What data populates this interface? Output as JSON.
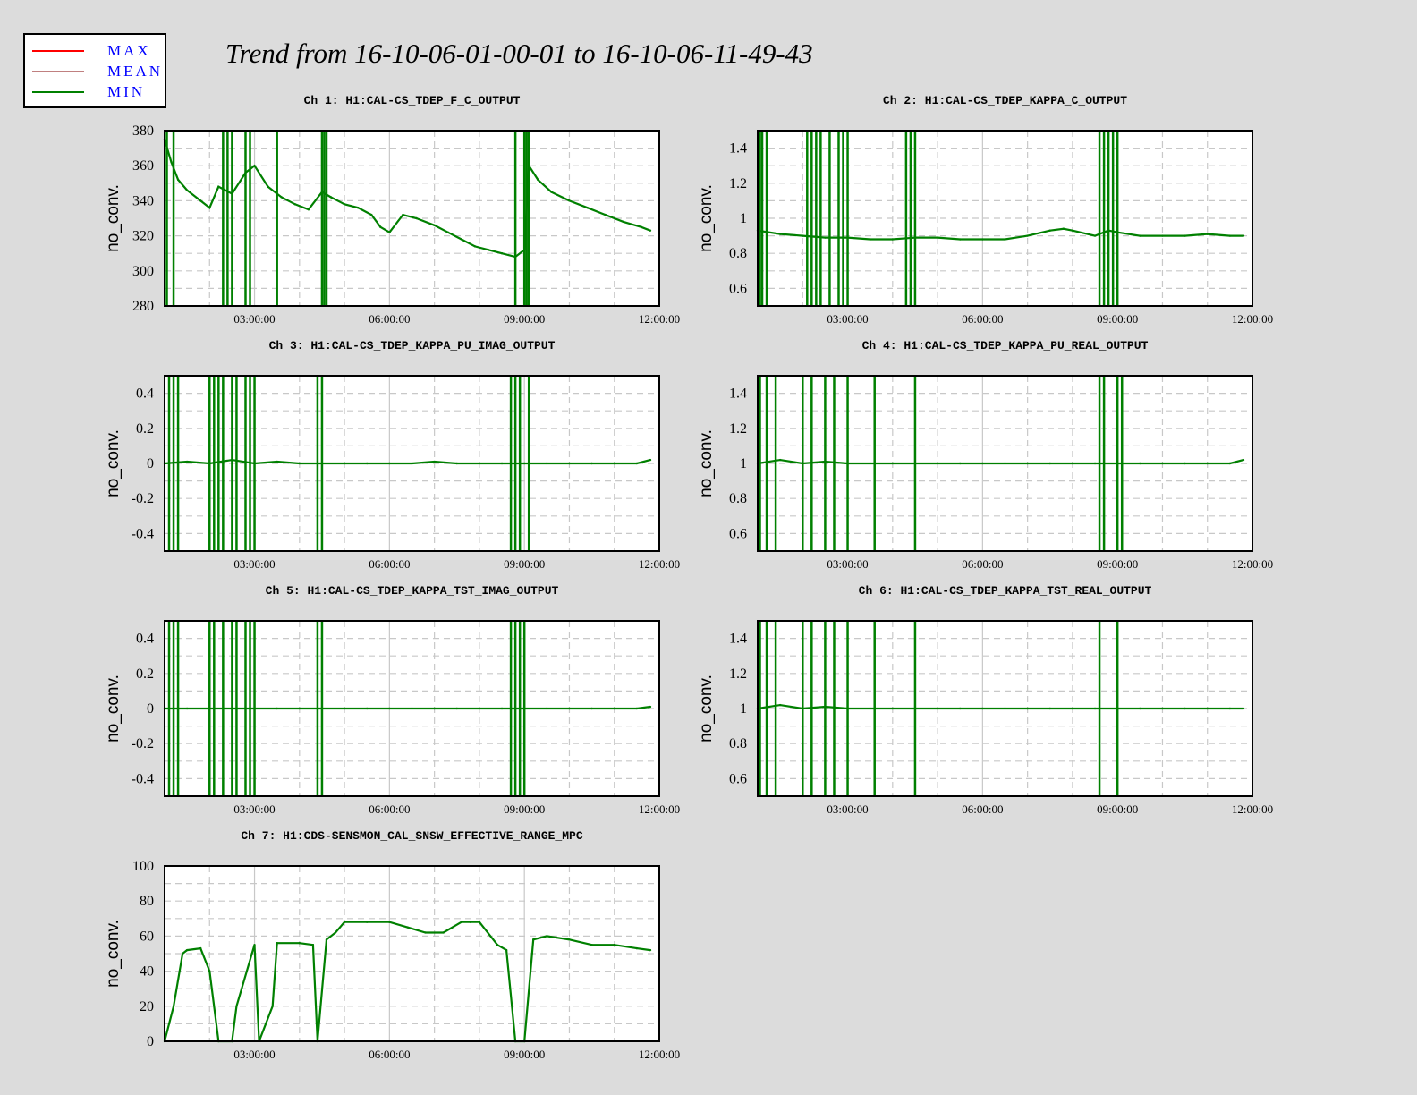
{
  "title": "Trend from 16-10-06-01-00-01 to 16-10-06-11-49-43",
  "legend": [
    {
      "label": "MAX",
      "color": "#ff0000"
    },
    {
      "label": "MEAN",
      "color": "#c08080"
    },
    {
      "label": "MIN",
      "color": "#008000"
    }
  ],
  "colors": {
    "trace": "#008000",
    "max": "#ff0000",
    "grid": "#c8c8c8",
    "background": "#dcdcdc",
    "plot_bg": "#ffffff",
    "legend_text": "#0000ff"
  },
  "chart_data": [
    {
      "type": "line",
      "title": "Ch 1: H1:CAL-CS_TDEP_F_C_OUTPUT",
      "ylabel": "no_conv.",
      "xlim": [
        1.0,
        12.0
      ],
      "ylim": [
        280,
        380
      ],
      "yticks": [
        "280",
        "300",
        "320",
        "340",
        "360",
        "380"
      ],
      "xticks": [
        "03:00:00",
        "06:00:00",
        "09:00:00",
        "12:00:00"
      ],
      "grid": true,
      "series": [
        {
          "x": [
            1.0,
            1.15,
            1.3,
            1.5,
            1.8,
            2.0,
            2.2,
            2.5,
            2.8,
            3.0,
            3.3,
            3.6,
            3.9,
            4.2,
            4.5,
            4.7,
            5.0,
            5.3,
            5.6,
            5.8,
            6.0,
            6.3,
            6.6,
            7.0,
            7.3,
            7.6,
            7.9,
            8.2,
            8.5,
            8.8,
            9.0,
            9.1,
            9.3,
            9.6,
            10.0,
            10.4,
            10.8,
            11.2,
            11.6,
            11.8
          ],
          "y": [
            375,
            362,
            352,
            346,
            340,
            336,
            348,
            344,
            356,
            360,
            348,
            342,
            338,
            335,
            345,
            342,
            338,
            336,
            332,
            325,
            322,
            332,
            330,
            326,
            322,
            318,
            314,
            312,
            310,
            308,
            312,
            360,
            352,
            345,
            340,
            336,
            332,
            328,
            325,
            323
          ]
        }
      ],
      "dropouts": [
        1.05,
        1.2,
        2.3,
        2.4,
        2.5,
        2.8,
        2.9,
        3.5,
        4.5,
        4.55,
        4.6,
        8.8,
        9.0,
        9.05,
        9.1
      ]
    },
    {
      "type": "line",
      "title": "Ch 2: H1:CAL-CS_TDEP_KAPPA_C_OUTPUT",
      "ylabel": "no_conv.",
      "xlim": [
        1.0,
        12.0
      ],
      "ylim": [
        0.5,
        1.5
      ],
      "yticks": [
        "0.6",
        "0.8",
        "1",
        "1.2",
        "1.4"
      ],
      "xticks": [
        "03:00:00",
        "06:00:00",
        "09:00:00",
        "12:00:00"
      ],
      "grid": true,
      "series": [
        {
          "x": [
            1.0,
            1.5,
            2.0,
            2.5,
            3.0,
            3.5,
            4.0,
            4.5,
            5.0,
            5.5,
            6.0,
            6.5,
            7.0,
            7.5,
            7.8,
            8.0,
            8.5,
            8.8,
            9.0,
            9.5,
            10.0,
            10.5,
            11.0,
            11.5,
            11.8
          ],
          "y": [
            0.93,
            0.91,
            0.9,
            0.89,
            0.89,
            0.88,
            0.88,
            0.89,
            0.89,
            0.88,
            0.88,
            0.88,
            0.9,
            0.93,
            0.94,
            0.93,
            0.9,
            0.93,
            0.92,
            0.9,
            0.9,
            0.9,
            0.91,
            0.9,
            0.9
          ]
        }
      ],
      "dropouts": [
        1.05,
        1.1,
        1.2,
        2.1,
        2.2,
        2.3,
        2.4,
        2.6,
        2.8,
        2.9,
        3.0,
        4.3,
        4.4,
        4.5,
        8.6,
        8.7,
        8.8,
        8.9,
        9.0
      ]
    },
    {
      "type": "line",
      "title": "Ch 3: H1:CAL-CS_TDEP_KAPPA_PU_IMAG_OUTPUT",
      "ylabel": "no_conv.",
      "xlim": [
        1.0,
        12.0
      ],
      "ylim": [
        -0.5,
        0.5
      ],
      "yticks": [
        "-0.4",
        "-0.2",
        "0",
        "0.2",
        "0.4"
      ],
      "xticks": [
        "03:00:00",
        "06:00:00",
        "09:00:00",
        "12:00:00"
      ],
      "grid": true,
      "series": [
        {
          "x": [
            1.0,
            1.5,
            2.0,
            2.5,
            3.0,
            3.5,
            4.0,
            4.5,
            5.0,
            5.5,
            6.0,
            6.5,
            7.0,
            7.5,
            8.0,
            8.5,
            9.0,
            9.5,
            10.0,
            10.5,
            11.0,
            11.5,
            11.8
          ],
          "y": [
            0.0,
            0.01,
            0.0,
            0.02,
            0.0,
            0.01,
            0.0,
            0.0,
            0.0,
            0.0,
            0.0,
            0.0,
            0.01,
            0.0,
            0.0,
            0.0,
            0.0,
            0.0,
            0.0,
            0.0,
            0.0,
            0.0,
            0.02
          ]
        }
      ],
      "dropouts": [
        1.1,
        1.2,
        1.3,
        2.0,
        2.1,
        2.2,
        2.3,
        2.5,
        2.6,
        2.8,
        2.9,
        3.0,
        4.4,
        4.5,
        8.7,
        8.8,
        8.9,
        9.1
      ]
    },
    {
      "type": "line",
      "title": "Ch 4: H1:CAL-CS_TDEP_KAPPA_PU_REAL_OUTPUT",
      "ylabel": "no_conv.",
      "xlim": [
        1.0,
        12.0
      ],
      "ylim": [
        0.5,
        1.5
      ],
      "yticks": [
        "0.6",
        "0.8",
        "1",
        "1.2",
        "1.4"
      ],
      "xticks": [
        "03:00:00",
        "06:00:00",
        "09:00:00",
        "12:00:00"
      ],
      "grid": true,
      "series": [
        {
          "x": [
            1.0,
            1.5,
            2.0,
            2.5,
            3.0,
            3.5,
            4.0,
            4.5,
            5.0,
            5.5,
            6.0,
            6.5,
            7.0,
            7.5,
            8.0,
            8.5,
            9.0,
            9.5,
            10.0,
            10.5,
            11.0,
            11.5,
            11.8
          ],
          "y": [
            1.0,
            1.02,
            1.0,
            1.01,
            1.0,
            1.0,
            1.0,
            1.0,
            1.0,
            1.0,
            1.0,
            1.0,
            1.0,
            1.0,
            1.0,
            1.0,
            1.0,
            1.0,
            1.0,
            1.0,
            1.0,
            1.0,
            1.02
          ]
        }
      ],
      "dropouts": [
        1.05,
        1.2,
        1.4,
        2.0,
        2.2,
        2.5,
        2.7,
        3.0,
        3.6,
        4.5,
        8.6,
        8.7,
        9.0,
        9.1
      ]
    },
    {
      "type": "line",
      "title": "Ch 5: H1:CAL-CS_TDEP_KAPPA_TST_IMAG_OUTPUT",
      "ylabel": "no_conv.",
      "xlim": [
        1.0,
        12.0
      ],
      "ylim": [
        -0.5,
        0.5
      ],
      "yticks": [
        "-0.4",
        "-0.2",
        "0",
        "0.2",
        "0.4"
      ],
      "xticks": [
        "03:00:00",
        "06:00:00",
        "09:00:00",
        "12:00:00"
      ],
      "grid": true,
      "series": [
        {
          "x": [
            1.0,
            1.5,
            2.0,
            2.5,
            3.0,
            3.5,
            4.0,
            4.5,
            5.0,
            5.5,
            6.0,
            6.5,
            7.0,
            7.5,
            8.0,
            8.5,
            9.0,
            9.5,
            10.0,
            10.5,
            11.0,
            11.5,
            11.8
          ],
          "y": [
            0.0,
            0.0,
            0.0,
            0.0,
            0.0,
            0.0,
            0.0,
            0.0,
            0.0,
            0.0,
            0.0,
            0.0,
            0.0,
            0.0,
            0.0,
            0.0,
            0.0,
            0.0,
            0.0,
            0.0,
            0.0,
            0.0,
            0.01
          ]
        }
      ],
      "dropouts": [
        1.1,
        1.2,
        1.3,
        2.0,
        2.1,
        2.3,
        2.5,
        2.6,
        2.8,
        2.9,
        3.0,
        4.4,
        4.5,
        8.7,
        8.8,
        8.9,
        9.0
      ]
    },
    {
      "type": "line",
      "title": "Ch 6: H1:CAL-CS_TDEP_KAPPA_TST_REAL_OUTPUT",
      "ylabel": "no_conv.",
      "xlim": [
        1.0,
        12.0
      ],
      "ylim": [
        0.5,
        1.5
      ],
      "yticks": [
        "0.6",
        "0.8",
        "1",
        "1.2",
        "1.4"
      ],
      "xticks": [
        "03:00:00",
        "06:00:00",
        "09:00:00",
        "12:00:00"
      ],
      "grid": true,
      "series": [
        {
          "x": [
            1.0,
            1.5,
            2.0,
            2.5,
            3.0,
            3.5,
            4.0,
            4.5,
            5.0,
            5.5,
            6.0,
            6.5,
            7.0,
            7.5,
            8.0,
            8.5,
            9.0,
            9.5,
            10.0,
            10.5,
            11.0,
            11.5,
            11.8
          ],
          "y": [
            1.0,
            1.02,
            1.0,
            1.01,
            1.0,
            1.0,
            1.0,
            1.0,
            1.0,
            1.0,
            1.0,
            1.0,
            1.0,
            1.0,
            1.0,
            1.0,
            1.0,
            1.0,
            1.0,
            1.0,
            1.0,
            1.0,
            1.0
          ]
        }
      ],
      "dropouts": [
        1.05,
        1.2,
        1.4,
        2.0,
        2.2,
        2.5,
        2.7,
        3.0,
        3.6,
        4.5,
        8.6,
        9.0
      ]
    },
    {
      "type": "line",
      "title": "Ch 7: H1:CDS-SENSMON_CAL_SNSW_EFFECTIVE_RANGE_MPC",
      "ylabel": "no_conv.",
      "xlim": [
        1.0,
        12.0
      ],
      "ylim": [
        0,
        100
      ],
      "yticks": [
        "0",
        "20",
        "40",
        "60",
        "80",
        "100"
      ],
      "xticks": [
        "03:00:00",
        "06:00:00",
        "09:00:00",
        "12:00:00"
      ],
      "grid": true,
      "series": [
        {
          "x": [
            1.0,
            1.2,
            1.4,
            1.5,
            1.8,
            2.0,
            2.2,
            2.5,
            2.6,
            3.0,
            3.1,
            3.4,
            3.5,
            4.0,
            4.3,
            4.4,
            4.6,
            4.8,
            5.0,
            5.5,
            6.0,
            6.4,
            6.8,
            7.2,
            7.6,
            7.8,
            8.0,
            8.4,
            8.6,
            8.8,
            9.0,
            9.2,
            9.5,
            10.0,
            10.5,
            11.0,
            11.5,
            11.8
          ],
          "y": [
            0,
            20,
            50,
            52,
            53,
            40,
            0,
            0,
            20,
            55,
            0,
            20,
            56,
            56,
            55,
            0,
            58,
            62,
            68,
            68,
            68,
            65,
            62,
            62,
            68,
            68,
            68,
            55,
            52,
            0,
            0,
            58,
            60,
            58,
            55,
            55,
            53,
            52
          ]
        }
      ],
      "dropouts": []
    }
  ]
}
